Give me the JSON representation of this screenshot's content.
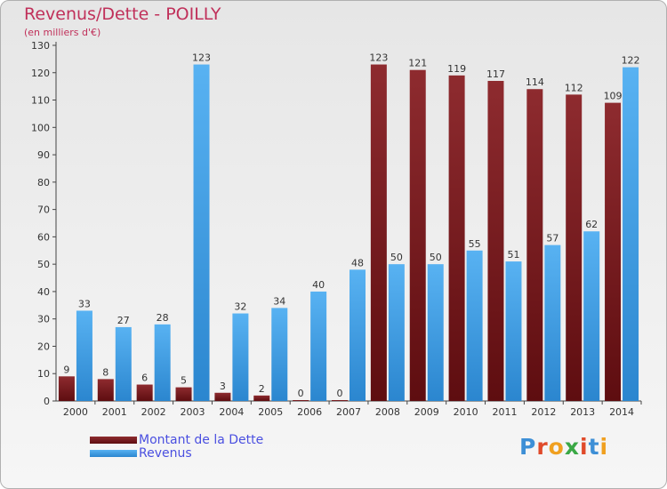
{
  "title": "Revenus/Dette - POILLY",
  "subtitle": "(en milliers d'€)",
  "logo": "Proxiti",
  "colors": {
    "dette": "#7a1b20",
    "revenus": "#3d9be0",
    "title": "#c0305a",
    "legend_text": "#4a4fe0"
  },
  "chart_data": {
    "type": "bar",
    "categories": [
      "2000",
      "2001",
      "2002",
      "2003",
      "2004",
      "2005",
      "2006",
      "2007",
      "2008",
      "2009",
      "2010",
      "2011",
      "2012",
      "2013",
      "2014"
    ],
    "series": [
      {
        "name": "Montant de la Dette",
        "values": [
          9,
          8,
          6,
          5,
          3,
          2,
          0,
          0,
          123,
          121,
          119,
          117,
          114,
          112,
          109
        ]
      },
      {
        "name": "Revenus",
        "values": [
          33,
          27,
          28,
          123,
          32,
          34,
          40,
          48,
          50,
          50,
          55,
          51,
          57,
          62,
          122
        ]
      }
    ],
    "ylim": [
      0,
      130
    ],
    "yticks": [
      0,
      10,
      20,
      30,
      40,
      50,
      60,
      70,
      80,
      90,
      100,
      110,
      120,
      130
    ],
    "legend": "bottom-left",
    "grid": false
  }
}
